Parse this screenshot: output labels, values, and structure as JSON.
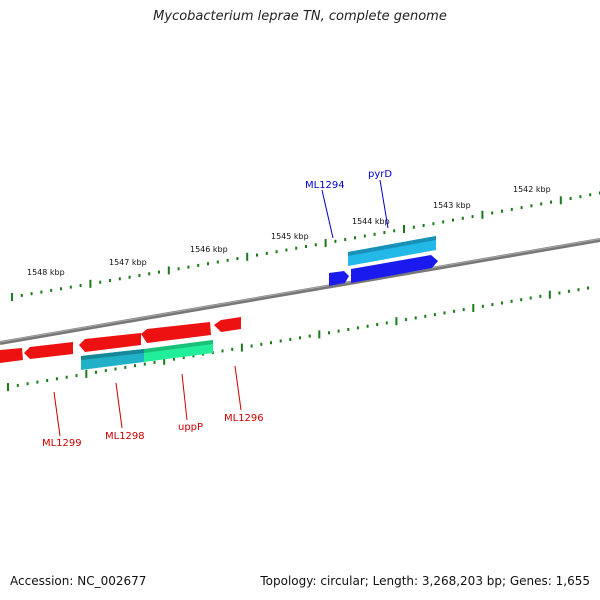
{
  "title": "Mycobacterium leprae TN, complete genome",
  "footer": {
    "accession": "Accession: NC_002677",
    "info": "Topology: circular; Length: 3,268,203 bp; Genes: 1,655"
  },
  "ruler": {
    "labels": [
      "1548 kbp",
      "1547 kbp",
      "1546 kbp",
      "1545 kbp",
      "1544 kbp",
      "1543 kbp",
      "1542 kbp"
    ]
  },
  "genes": {
    "labels": [
      "ML1294",
      "pyrD",
      "ML1299",
      "ML1298",
      "uppP",
      "ML1296"
    ]
  },
  "colors": {
    "plus_strand_label": "#0000cc",
    "minus_strand_label": "#cc0000",
    "red_gene": "#ee1111",
    "blue_gene": "#1a1aee",
    "cyan_gene": "#22b8e8",
    "teal_gene": "#20b0c8",
    "green_gene": "#22ee99",
    "tick": "#1a7a1a",
    "backbone": "#777777"
  }
}
